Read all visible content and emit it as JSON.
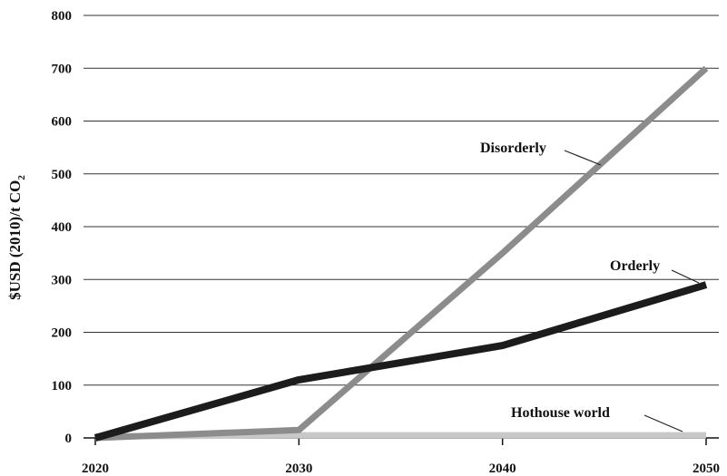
{
  "chart_data": {
    "type": "line",
    "ylabel": "$USD (2010)/t CO",
    "ylabel_subscript": "2",
    "xlim": [
      2020,
      2050
    ],
    "ylim": [
      0,
      800
    ],
    "x_ticks": [
      "2020",
      "2030",
      "2040",
      "2050"
    ],
    "y_ticks": [
      "0",
      "100",
      "200",
      "300",
      "400",
      "500",
      "600",
      "700",
      "800"
    ],
    "grid": "horizontal",
    "legend": "none (direct labels)",
    "series": [
      {
        "name": "Hothouse world",
        "color": "#c8c8c8",
        "points": [
          [
            2020,
            3
          ],
          [
            2030,
            5
          ],
          [
            2040,
            5
          ],
          [
            2050,
            5
          ]
        ]
      },
      {
        "name": "Disorderly",
        "color": "#8c8c8c",
        "points": [
          [
            2020,
            0
          ],
          [
            2030,
            15
          ],
          [
            2040,
            350
          ],
          [
            2050,
            700
          ]
        ]
      },
      {
        "name": "Orderly",
        "color": "#1c1c1c",
        "points": [
          [
            2020,
            0
          ],
          [
            2030,
            110
          ],
          [
            2040,
            175
          ],
          [
            2050,
            290
          ]
        ]
      }
    ]
  }
}
